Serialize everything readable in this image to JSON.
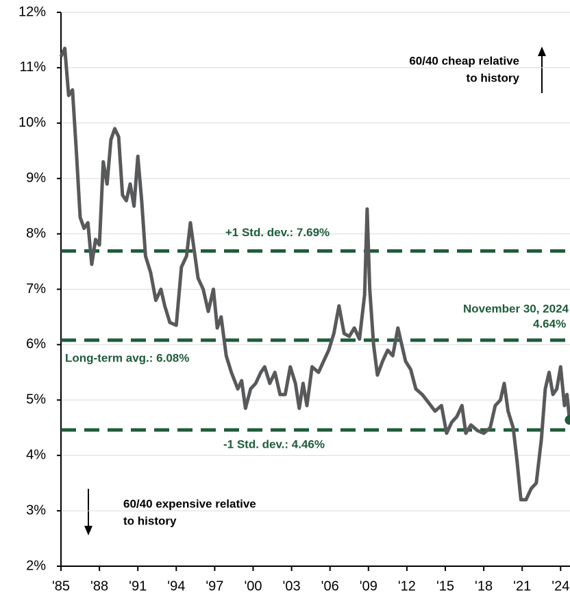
{
  "chart_data": {
    "type": "line",
    "x": [
      1985.0,
      1985.3,
      1985.6,
      1985.9,
      1986.2,
      1986.5,
      1986.8,
      1987.1,
      1987.4,
      1987.7,
      1988.0,
      1988.3,
      1988.6,
      1988.9,
      1989.2,
      1989.5,
      1989.8,
      1990.1,
      1990.4,
      1990.7,
      1991.0,
      1991.3,
      1991.6,
      1992.0,
      1992.4,
      1992.8,
      1993.1,
      1993.5,
      1994.0,
      1994.4,
      1994.8,
      1995.1,
      1995.4,
      1995.7,
      1996.1,
      1996.5,
      1996.9,
      1997.2,
      1997.5,
      1997.9,
      1998.3,
      1998.8,
      1999.1,
      1999.4,
      1999.8,
      2000.2,
      2000.6,
      2000.9,
      2001.3,
      2001.7,
      2002.1,
      2002.5,
      2002.9,
      2003.3,
      2003.6,
      2003.9,
      2004.2,
      2004.6,
      2005.1,
      2005.5,
      2005.9,
      2006.3,
      2006.7,
      2007.1,
      2007.5,
      2007.9,
      2008.3,
      2008.7,
      2008.9,
      2009.1,
      2009.4,
      2009.7,
      2010.1,
      2010.5,
      2010.9,
      2011.3,
      2011.6,
      2011.9,
      2012.3,
      2012.7,
      2013.2,
      2013.7,
      2014.2,
      2014.7,
      2015.1,
      2015.5,
      2015.9,
      2016.3,
      2016.6,
      2017.0,
      2017.5,
      2018.0,
      2018.5,
      2018.9,
      2019.3,
      2019.6,
      2019.9,
      2020.3,
      2020.6,
      2020.9,
      2021.3,
      2021.7,
      2022.1,
      2022.5,
      2022.8,
      2023.1,
      2023.4,
      2023.7,
      2024.0,
      2024.3,
      2024.5,
      2024.7
    ],
    "series": [
      {
        "color": "#58595b",
        "values": [
          11.2,
          11.35,
          10.5,
          10.6,
          9.5,
          8.3,
          8.1,
          8.2,
          7.45,
          7.9,
          7.8,
          9.3,
          8.9,
          9.7,
          9.9,
          9.75,
          8.7,
          8.6,
          8.9,
          8.5,
          9.4,
          8.6,
          7.6,
          7.3,
          6.8,
          7.0,
          6.7,
          6.4,
          6.35,
          7.4,
          7.6,
          8.2,
          7.7,
          7.2,
          7.0,
          6.6,
          7.0,
          6.3,
          6.5,
          5.8,
          5.5,
          5.2,
          5.35,
          4.85,
          5.2,
          5.3,
          5.5,
          5.6,
          5.3,
          5.5,
          5.1,
          5.1,
          5.6,
          5.3,
          4.85,
          5.3,
          4.9,
          5.6,
          5.5,
          5.7,
          5.9,
          6.2,
          6.7,
          6.2,
          6.15,
          6.3,
          6.1,
          6.9,
          8.45,
          7.0,
          6.0,
          5.45,
          5.7,
          5.9,
          5.8,
          6.3,
          6.0,
          5.7,
          5.55,
          5.2,
          5.1,
          4.95,
          4.8,
          4.9,
          4.4,
          4.6,
          4.7,
          4.9,
          4.4,
          4.55,
          4.45,
          4.4,
          4.5,
          4.9,
          5.0,
          5.3,
          4.8,
          4.5,
          3.9,
          3.2,
          3.2,
          3.4,
          3.5,
          4.3,
          5.2,
          5.5,
          5.1,
          5.2,
          5.6,
          4.9,
          5.1,
          4.64
        ]
      }
    ],
    "xlim": [
      1985,
      2025
    ],
    "xticks": [
      {
        "value": 1985,
        "label": "'85"
      },
      {
        "value": 1988,
        "label": "'88"
      },
      {
        "value": 1991,
        "label": "'91"
      },
      {
        "value": 1994,
        "label": "'94"
      },
      {
        "value": 1997,
        "label": "'97"
      },
      {
        "value": 2000,
        "label": "'00"
      },
      {
        "value": 2003,
        "label": "'03"
      },
      {
        "value": 2006,
        "label": "'06"
      },
      {
        "value": 2009,
        "label": "'09"
      },
      {
        "value": 2012,
        "label": "'12"
      },
      {
        "value": 2015,
        "label": "'15"
      },
      {
        "value": 2018,
        "label": "'18"
      },
      {
        "value": 2021,
        "label": "'21"
      },
      {
        "value": 2024,
        "label": "'24"
      }
    ],
    "ylim": [
      2,
      12
    ],
    "yticks": [
      {
        "value": 2,
        "label": "2%"
      },
      {
        "value": 3,
        "label": "3%"
      },
      {
        "value": 4,
        "label": "4%"
      },
      {
        "value": 5,
        "label": "5%"
      },
      {
        "value": 6,
        "label": "6%"
      },
      {
        "value": 7,
        "label": "7%"
      },
      {
        "value": 8,
        "label": "8%"
      },
      {
        "value": 9,
        "label": "9%"
      },
      {
        "value": 10,
        "label": "10%"
      },
      {
        "value": 11,
        "label": "11%"
      },
      {
        "value": 12,
        "label": "12%"
      }
    ],
    "grid": true,
    "reference_lines": [
      {
        "value": 7.69,
        "label": "+1 Std. dev.: 7.69%",
        "color": "#1e5c3a"
      },
      {
        "value": 6.08,
        "label": "Long-term avg.: 6.08%",
        "color": "#1e5c3a"
      },
      {
        "value": 4.46,
        "label": "-1 Std. dev.: 4.46%",
        "color": "#1e5c3a"
      }
    ],
    "current": {
      "x": 2024.7,
      "value": 4.64,
      "date_label": "November 30, 2024",
      "value_label": "4.64%",
      "color": "#1e5c3a"
    },
    "annotations": {
      "cheap": [
        "60/40 cheap relative",
        "to history"
      ],
      "expensive": [
        "60/40 expensive relative",
        "to history"
      ]
    }
  }
}
